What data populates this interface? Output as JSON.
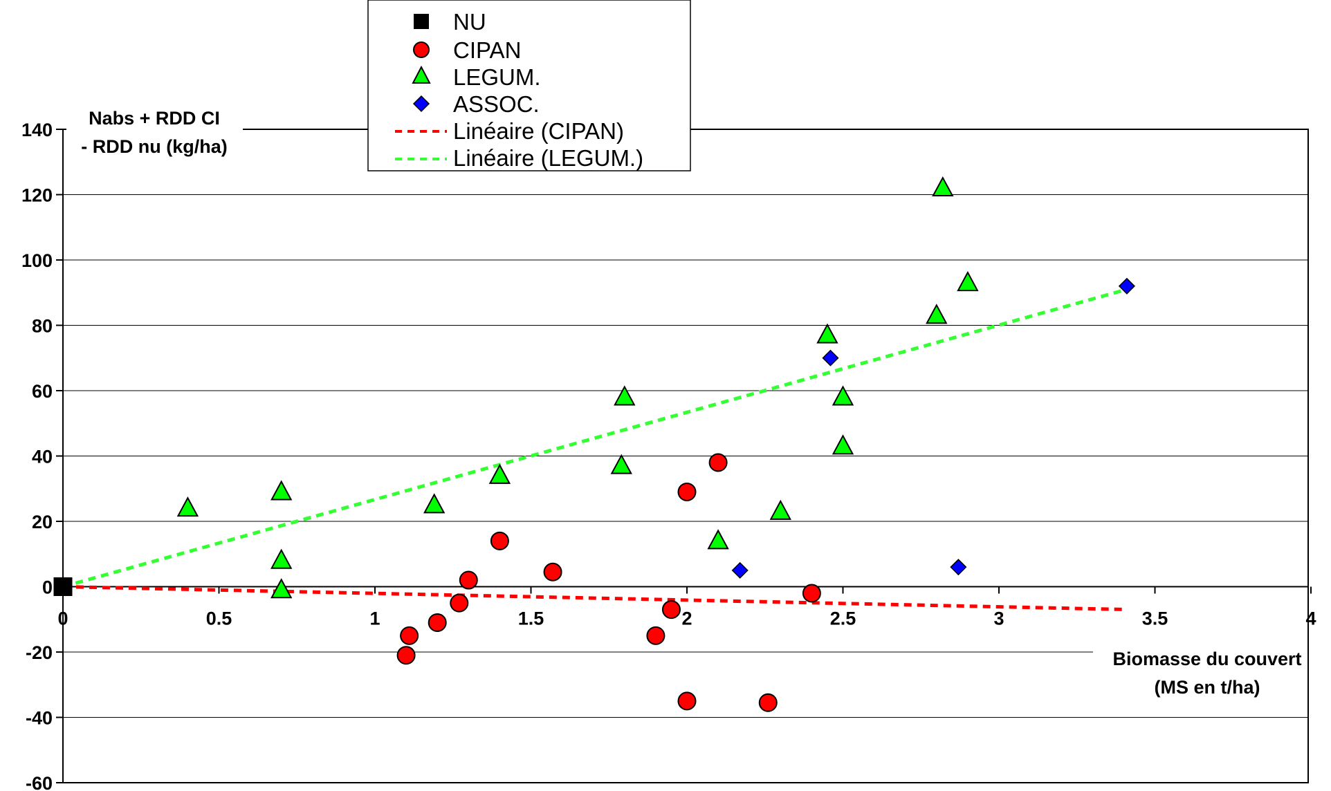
{
  "chart_data": {
    "type": "scatter",
    "title": "",
    "xlabel": [
      "Biomasse du couvert",
      "(MS en t/ha)"
    ],
    "ylabel": [
      "Nabs + RDD CI",
      "- RDD nu (kg/ha)"
    ],
    "xlim": [
      0,
      4
    ],
    "ylim": [
      -60,
      140
    ],
    "x_ticks": [
      "0",
      "0.5",
      "1",
      "1.5",
      "2",
      "2.5",
      "3",
      "3.5",
      "4"
    ],
    "y_ticks": [
      "-60",
      "-40",
      "-20",
      "0",
      "20",
      "40",
      "60",
      "80",
      "100",
      "120",
      "140"
    ],
    "grid": "horizontal",
    "legend_position": "top-center",
    "series": [
      {
        "name": "NU",
        "marker": "square",
        "color": "#000000",
        "points": [
          [
            0,
            0
          ]
        ]
      },
      {
        "name": "CIPAN",
        "marker": "circle",
        "color": "#ff0000",
        "points": [
          [
            1.1,
            -21
          ],
          [
            1.11,
            -15
          ],
          [
            1.2,
            -11
          ],
          [
            1.27,
            -5
          ],
          [
            1.3,
            2
          ],
          [
            1.4,
            14
          ],
          [
            1.57,
            4.5
          ],
          [
            1.9,
            -15
          ],
          [
            1.95,
            -7
          ],
          [
            2.0,
            29
          ],
          [
            2.0,
            -35
          ],
          [
            2.1,
            38
          ],
          [
            2.26,
            -35.5
          ],
          [
            2.4,
            -2
          ]
        ]
      },
      {
        "name": "LEGUM.",
        "marker": "triangle",
        "color": "#00ff00",
        "points": [
          [
            0.4,
            24
          ],
          [
            0.7,
            29
          ],
          [
            0.7,
            8
          ],
          [
            0.7,
            -1
          ],
          [
            1.19,
            25
          ],
          [
            1.4,
            34
          ],
          [
            1.79,
            37
          ],
          [
            1.8,
            58
          ],
          [
            2.1,
            14
          ],
          [
            2.3,
            23
          ],
          [
            2.45,
            77
          ],
          [
            2.5,
            58
          ],
          [
            2.5,
            43
          ],
          [
            2.8,
            83
          ],
          [
            2.82,
            122
          ],
          [
            2.9,
            93
          ]
        ]
      },
      {
        "name": "ASSOC.",
        "marker": "diamond",
        "color": "#0000ff",
        "points": [
          [
            2.17,
            5
          ],
          [
            2.46,
            70
          ],
          [
            2.87,
            6
          ],
          [
            3.41,
            92
          ]
        ]
      }
    ],
    "trendlines": [
      {
        "name": "Linéaire (CIPAN)",
        "color": "#ff0000",
        "x": [
          0,
          3.41
        ],
        "y": [
          0,
          -7
        ]
      },
      {
        "name": "Linéaire (LEGUM.)",
        "color": "#33ff33",
        "x": [
          0,
          3.41
        ],
        "y": [
          0,
          91
        ]
      }
    ]
  }
}
